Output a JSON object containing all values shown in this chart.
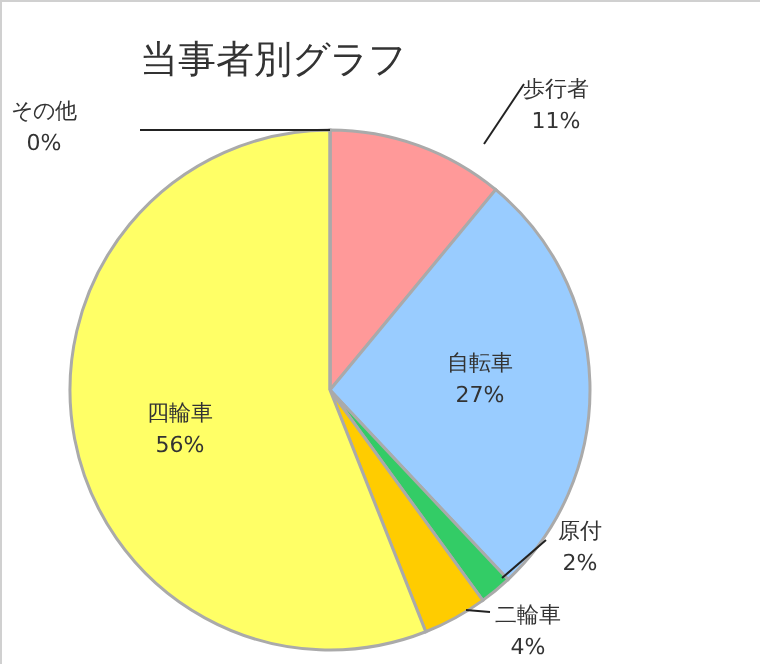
{
  "chart_data": {
    "type": "pie",
    "title": "当事者別グラフ",
    "categories": [
      "歩行者",
      "自転車",
      "原付",
      "二輪車",
      "四輪車",
      "その他"
    ],
    "values": [
      11,
      27,
      2,
      4,
      56,
      0
    ],
    "value_labels": [
      "11%",
      "27%",
      "2%",
      "4%",
      "56%",
      "0%"
    ],
    "colors": [
      "#ff9999",
      "#99ccff",
      "#33cc66",
      "#ffcc00",
      "#ffff66",
      "#9999ff"
    ],
    "legend": false
  }
}
